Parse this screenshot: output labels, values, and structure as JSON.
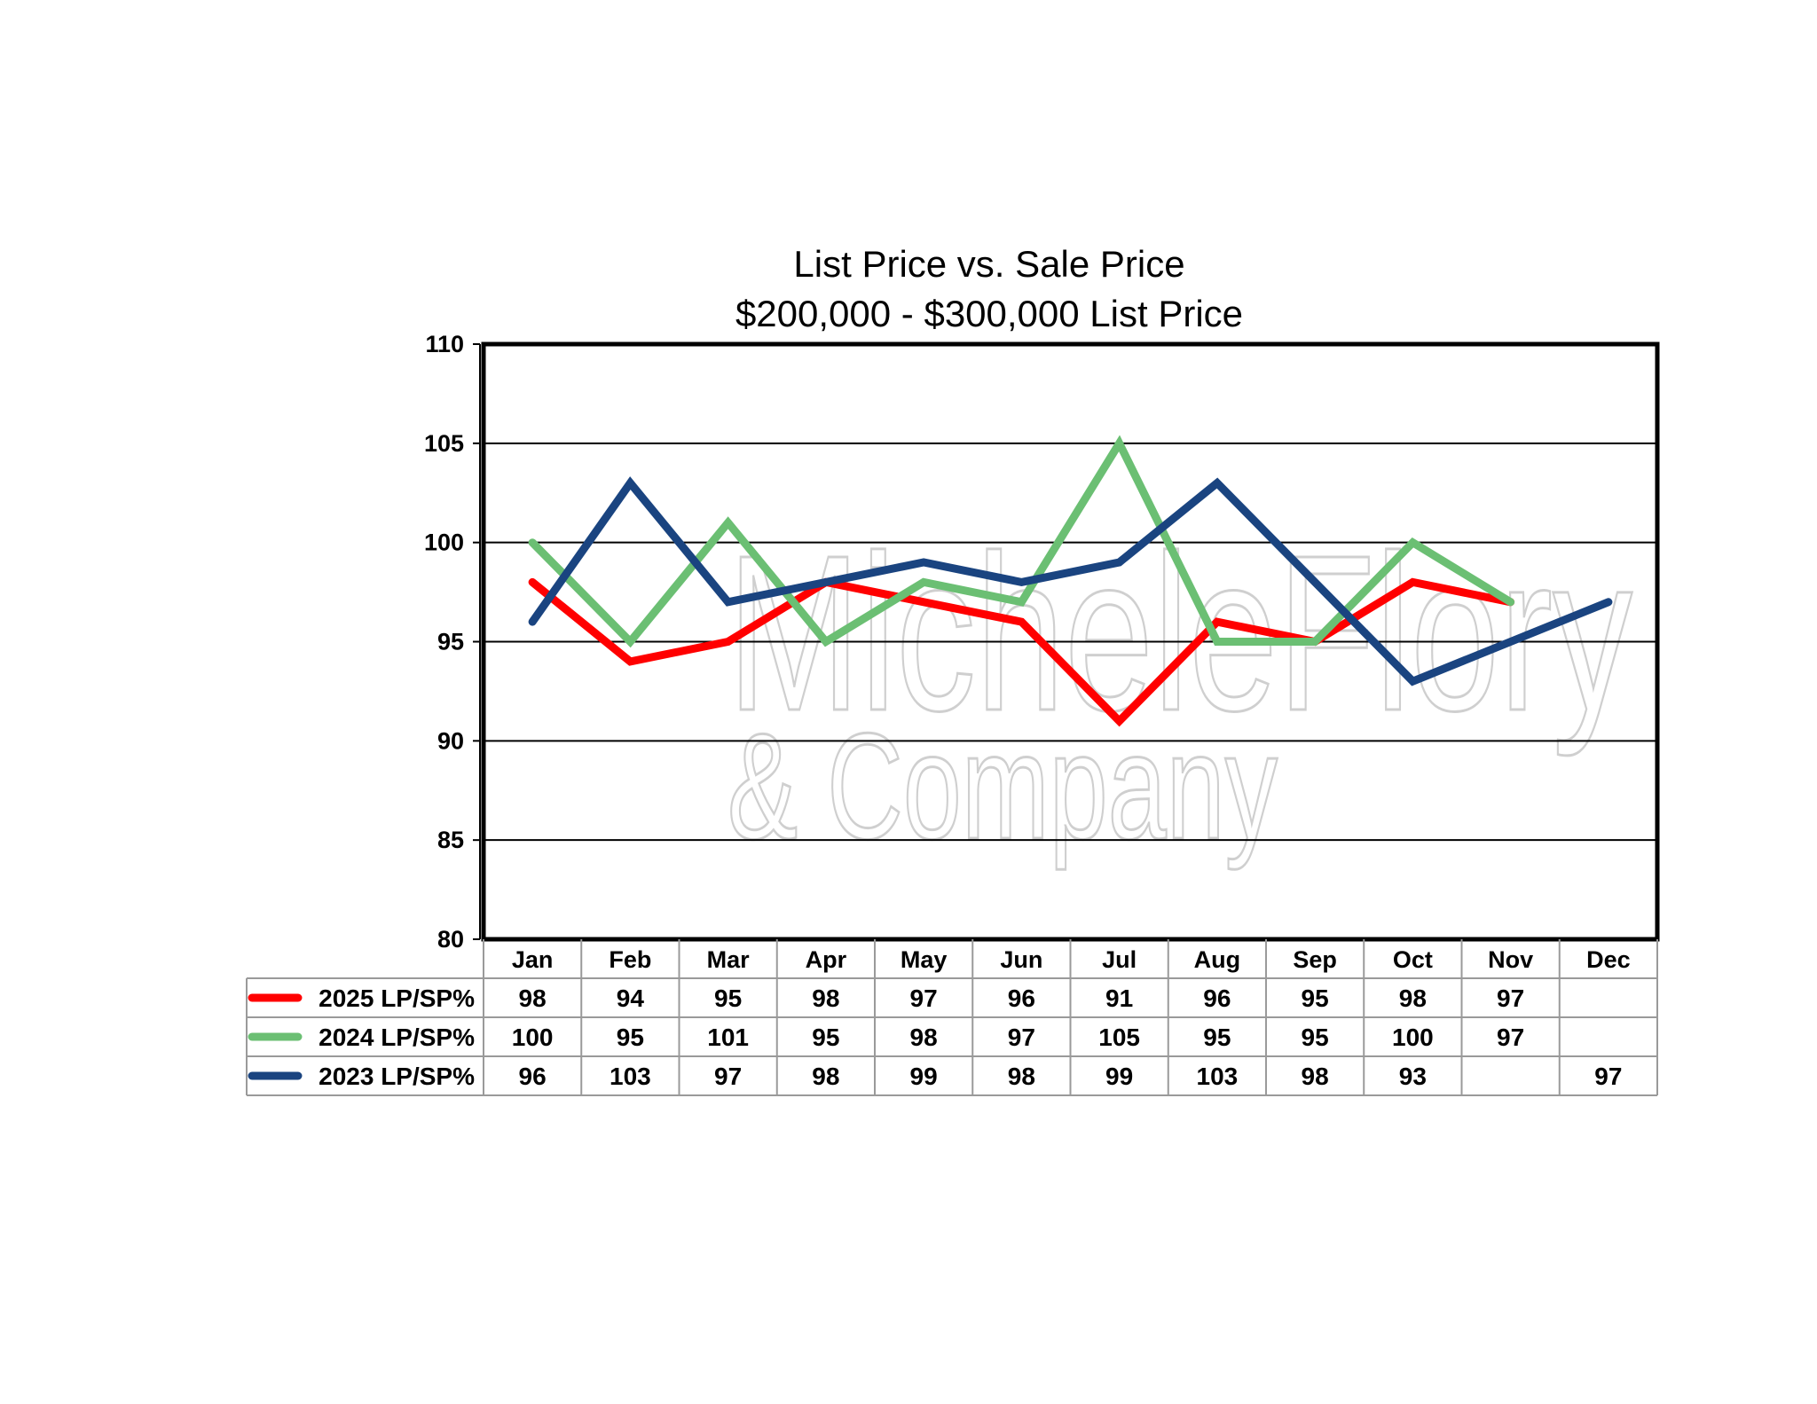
{
  "chart_data": {
    "type": "line",
    "title": "List Price vs. Sale Price",
    "subtitle": "$200,000 - $300,000 List Price",
    "xlabel": "",
    "ylabel": "",
    "categories": [
      "Jan",
      "Feb",
      "Mar",
      "Apr",
      "May",
      "Jun",
      "Jul",
      "Aug",
      "Sep",
      "Oct",
      "Nov",
      "Dec"
    ],
    "yticks": [
      80,
      85,
      90,
      95,
      100,
      105,
      110
    ],
    "ylim": [
      80,
      110
    ],
    "grid": true,
    "legend": "data-table-left",
    "series": [
      {
        "name": "2025 LP/SP%",
        "color": "#ff0000",
        "values": [
          98,
          94,
          95,
          98,
          97,
          96,
          91,
          96,
          95,
          98,
          97,
          null
        ]
      },
      {
        "name": "2024 LP/SP%",
        "color": "#6bbf73",
        "values": [
          100,
          95,
          101,
          95,
          98,
          97,
          105,
          95,
          95,
          100,
          97,
          null
        ]
      },
      {
        "name": "2023 LP/SP%",
        "color": "#1a4480",
        "values": [
          96,
          103,
          97,
          98,
          99,
          98,
          99,
          103,
          98,
          93,
          null,
          97
        ]
      }
    ]
  },
  "watermark": {
    "line1": "MicheleFlory",
    "line2": "& Company"
  }
}
